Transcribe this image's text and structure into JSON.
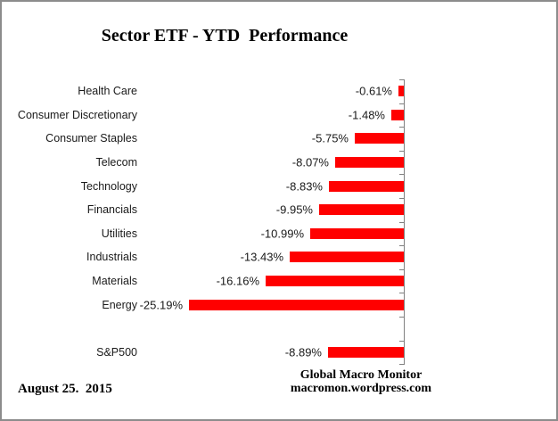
{
  "chart_data": {
    "type": "bar",
    "orientation": "horizontal",
    "title": "Sector ETF - YTD  Performance",
    "categories": [
      "Health Care",
      "Consumer Discretionary",
      "Consumer Staples",
      "Telecom",
      "Technology",
      "Financials",
      "Utilities",
      "Industrials",
      "Materials",
      "Energy",
      "S&P500"
    ],
    "values": [
      -0.61,
      -1.48,
      -5.75,
      -8.07,
      -8.83,
      -9.95,
      -10.99,
      -13.43,
      -16.16,
      -25.19,
      -8.89
    ],
    "value_labels": [
      "-0.61%",
      "-1.48%",
      "-5.75%",
      "-8.07%",
      "-8.83%",
      "-9.95%",
      "-10.99%",
      "-13.43%",
      "-16.16%",
      "-25.19%",
      "-8.89%"
    ],
    "bar_color": "#ff0000",
    "axis_color": "#808080",
    "value_axis_side": "right",
    "xlim": [
      -26,
      0
    ],
    "grid": false,
    "legend": false,
    "notes": "blank row between Energy and S&P500"
  },
  "footer": {
    "date": "August 25.  2015",
    "brand_line1": "Global Macro Monitor",
    "brand_line2": "macromon.wordpress.com"
  }
}
